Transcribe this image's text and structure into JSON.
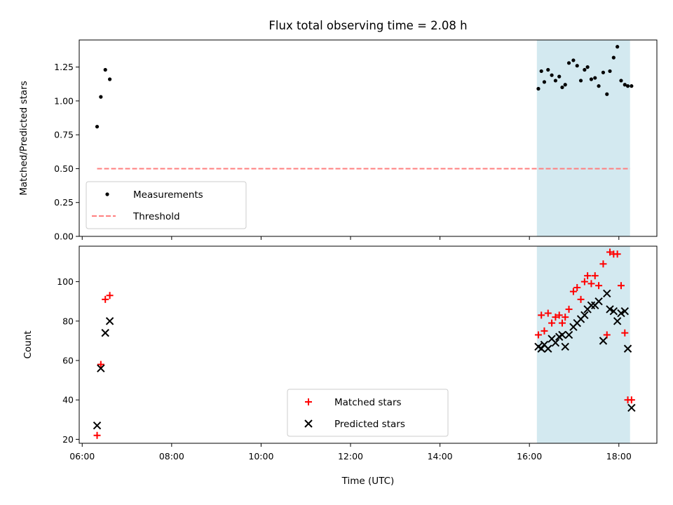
{
  "title": "Flux total observing time = 2.08 h",
  "chart_data": [
    {
      "type": "scatter",
      "ylabel": "Matched/Predicted stars",
      "xlabel": "",
      "xlim": [
        "05:56",
        "18:51"
      ],
      "ylim": [
        0,
        1.45
      ],
      "yticks": [
        "0.00",
        "0.25",
        "0.50",
        "0.75",
        "1.00",
        "1.25"
      ],
      "shaded_region": [
        "16:10",
        "18:15"
      ],
      "shaded_color": "#d3e9f0",
      "series": [
        {
          "name": "Measurements",
          "marker": "dot",
          "color": "#000000",
          "x": [
            "06:20",
            "06:25",
            "06:31",
            "06:37",
            "16:12",
            "16:16",
            "16:20",
            "16:25",
            "16:30",
            "16:35",
            "16:40",
            "16:44",
            "16:48",
            "16:53",
            "16:59",
            "17:04",
            "17:09",
            "17:14",
            "17:18",
            "17:23",
            "17:28",
            "17:33",
            "17:39",
            "17:44",
            "17:48",
            "17:53",
            "17:58",
            "18:03",
            "18:08",
            "18:12",
            "18:17"
          ],
          "y": [
            0.81,
            1.03,
            1.23,
            1.16,
            1.09,
            1.22,
            1.14,
            1.23,
            1.19,
            1.15,
            1.18,
            1.1,
            1.12,
            1.28,
            1.3,
            1.26,
            1.15,
            1.23,
            1.25,
            1.16,
            1.17,
            1.11,
            1.21,
            1.05,
            1.22,
            1.32,
            1.4,
            1.15,
            1.12,
            1.11,
            1.11
          ]
        },
        {
          "name": "Threshold",
          "marker": "dashed-line",
          "color": "#ff7f7f",
          "x": [
            "06:20",
            "18:15"
          ],
          "y": [
            0.5,
            0.5
          ]
        }
      ],
      "legend": "lower-left"
    },
    {
      "type": "scatter",
      "ylabel": "Count",
      "xlabel": "Time (UTC)",
      "xlim": [
        "05:56",
        "18:51"
      ],
      "ylim": [
        18,
        118
      ],
      "yticks": [
        "20",
        "40",
        "60",
        "80",
        "100"
      ],
      "xticks": [
        "06:00",
        "08:00",
        "10:00",
        "12:00",
        "14:00",
        "16:00",
        "18:00"
      ],
      "shaded_region": [
        "16:10",
        "18:15"
      ],
      "shaded_color": "#d3e9f0",
      "series": [
        {
          "name": "Matched stars",
          "marker": "plus",
          "color": "#ff0000",
          "x": [
            "06:20",
            "06:25",
            "06:31",
            "06:37",
            "16:12",
            "16:16",
            "16:20",
            "16:25",
            "16:30",
            "16:35",
            "16:40",
            "16:44",
            "16:48",
            "16:53",
            "16:59",
            "17:04",
            "17:09",
            "17:14",
            "17:18",
            "17:23",
            "17:28",
            "17:33",
            "17:39",
            "17:44",
            "17:48",
            "17:53",
            "17:58",
            "18:03",
            "18:08",
            "18:12",
            "18:17"
          ],
          "y": [
            22,
            58,
            91,
            93,
            73,
            83,
            75,
            84,
            79,
            82,
            83,
            79,
            82,
            86,
            95,
            97,
            91,
            100,
            103,
            99,
            103,
            98,
            109,
            73,
            115,
            114,
            114,
            98,
            74,
            40,
            40
          ]
        },
        {
          "name": "Predicted stars",
          "marker": "x",
          "color": "#000000",
          "x": [
            "06:20",
            "06:25",
            "06:31",
            "06:37",
            "16:12",
            "16:16",
            "16:20",
            "16:25",
            "16:30",
            "16:35",
            "16:40",
            "16:44",
            "16:48",
            "16:53",
            "16:59",
            "17:04",
            "17:09",
            "17:14",
            "17:18",
            "17:23",
            "17:28",
            "17:33",
            "17:39",
            "17:44",
            "17:48",
            "17:53",
            "17:58",
            "18:03",
            "18:08",
            "18:12",
            "18:17"
          ],
          "y": [
            27,
            56,
            74,
            80,
            67,
            66,
            68,
            66,
            71,
            69,
            72,
            73,
            67,
            73,
            77,
            79,
            81,
            83,
            86,
            88,
            88,
            90,
            70,
            94,
            86,
            85,
            80,
            84,
            85,
            66,
            36
          ]
        }
      ],
      "legend": "lower-center"
    }
  ]
}
